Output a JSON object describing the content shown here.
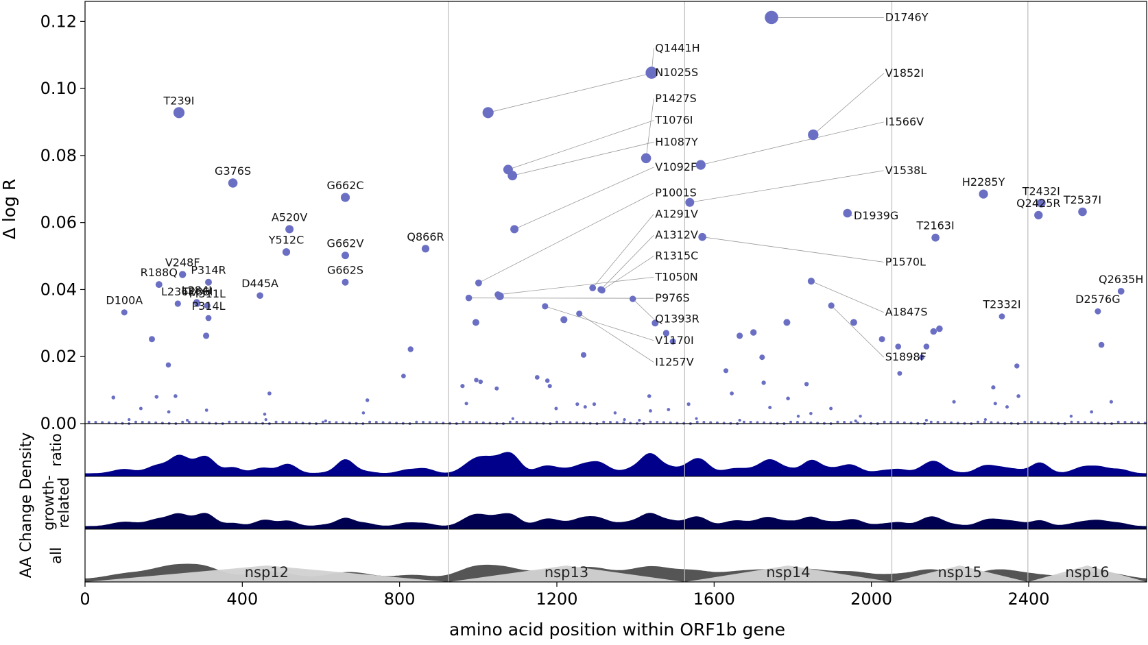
{
  "chart_data": {
    "type": "scatter",
    "xlabel": "amino acid position within ORF1b gene",
    "ylabel": "Δ log R",
    "density_axis_label": "AA Change Density",
    "xlim": [
      0,
      2700
    ],
    "ylim": [
      0,
      0.126
    ],
    "x_ticks": [
      0,
      400,
      800,
      1200,
      1600,
      2000,
      2400
    ],
    "y_ticks": [
      0.0,
      0.02,
      0.04,
      0.06,
      0.08,
      0.1,
      0.12
    ],
    "domain_boundaries": [
      924,
      1525,
      2052,
      2398
    ],
    "domains": [
      {
        "name": "nsp12",
        "start": 0,
        "end": 924
      },
      {
        "name": "nsp13",
        "start": 924,
        "end": 1525
      },
      {
        "name": "nsp14",
        "start": 1525,
        "end": 2052
      },
      {
        "name": "nsp15",
        "start": 2052,
        "end": 2398
      },
      {
        "name": "nsp16",
        "start": 2398,
        "end": 2700
      }
    ],
    "tracks": [
      {
        "label": "ratio",
        "color": "#00008b"
      },
      {
        "label": "growth-\nrelated",
        "color": "#000050"
      },
      {
        "label": "all",
        "color": "#555555"
      }
    ],
    "point_color": "#6a6fc4",
    "labeled_points": [
      {
        "name": "D1746Y",
        "x": 1746,
        "y": 0.1212
      },
      {
        "name": "N1025S",
        "x": 1025,
        "y": 0.0928
      },
      {
        "name": "Q1441H",
        "x": 1441,
        "y": 0.1047
      },
      {
        "name": "T239I",
        "x": 239,
        "y": 0.0928
      },
      {
        "name": "V1852I",
        "x": 1852,
        "y": 0.0862
      },
      {
        "name": "I1566V",
        "x": 1566,
        "y": 0.0772
      },
      {
        "name": "P1427S",
        "x": 1427,
        "y": 0.0792
      },
      {
        "name": "T1076I",
        "x": 1076,
        "y": 0.0758
      },
      {
        "name": "H1087Y",
        "x": 1087,
        "y": 0.074
      },
      {
        "name": "V1092F",
        "x": 1092,
        "y": 0.058
      },
      {
        "name": "G376S",
        "x": 376,
        "y": 0.0718
      },
      {
        "name": "G662C",
        "x": 662,
        "y": 0.0675
      },
      {
        "name": "V1538L",
        "x": 1538,
        "y": 0.066
      },
      {
        "name": "H2285Y",
        "x": 2285,
        "y": 0.0685
      },
      {
        "name": "T2432I",
        "x": 2432,
        "y": 0.0658
      },
      {
        "name": "Q2425R",
        "x": 2425,
        "y": 0.0622
      },
      {
        "name": "T2537I",
        "x": 2537,
        "y": 0.0632
      },
      {
        "name": "D1939G",
        "x": 1939,
        "y": 0.0628
      },
      {
        "name": "A520V",
        "x": 520,
        "y": 0.058
      },
      {
        "name": "T2163I",
        "x": 2163,
        "y": 0.0555
      },
      {
        "name": "P1001S",
        "x": 1001,
        "y": 0.042
      },
      {
        "name": "P1570L",
        "x": 1570,
        "y": 0.0557
      },
      {
        "name": "Y512C",
        "x": 512,
        "y": 0.0512
      },
      {
        "name": "Q866R",
        "x": 866,
        "y": 0.0522
      },
      {
        "name": "G662V",
        "x": 662,
        "y": 0.0502
      },
      {
        "name": "A1291V",
        "x": 1291,
        "y": 0.0405
      },
      {
        "name": "A1312V",
        "x": 1312,
        "y": 0.04
      },
      {
        "name": "R1315C",
        "x": 1315,
        "y": 0.0398
      },
      {
        "name": "T1050N",
        "x": 1050,
        "y": 0.0385
      },
      {
        "name": "P976S",
        "x": 976,
        "y": 0.0375
      },
      {
        "name": "Q1393R",
        "x": 1393,
        "y": 0.0372
      },
      {
        "name": "V1170I",
        "x": 1170,
        "y": 0.035
      },
      {
        "name": "I1257V",
        "x": 1257,
        "y": 0.0328
      },
      {
        "name": "G662S",
        "x": 662,
        "y": 0.0422
      },
      {
        "name": "V248F",
        "x": 248,
        "y": 0.0445
      },
      {
        "name": "R188Q",
        "x": 188,
        "y": 0.0415
      },
      {
        "name": "P314R",
        "x": 314,
        "y": 0.0422
      },
      {
        "name": "D445A",
        "x": 445,
        "y": 0.0382
      },
      {
        "name": "L284I",
        "x": 284,
        "y": 0.0362
      },
      {
        "name": "T286I",
        "x": 286,
        "y": 0.0358
      },
      {
        "name": "L236F",
        "x": 236,
        "y": 0.0358
      },
      {
        "name": "M311L",
        "x": 311,
        "y": 0.0352
      },
      {
        "name": "P314L",
        "x": 314,
        "y": 0.0315
      },
      {
        "name": "D100A",
        "x": 100,
        "y": 0.0332
      },
      {
        "name": "A1847S",
        "x": 1847,
        "y": 0.0425
      },
      {
        "name": "S1898F",
        "x": 1898,
        "y": 0.0352
      },
      {
        "name": "T2332I",
        "x": 2332,
        "y": 0.032
      },
      {
        "name": "Q2635H",
        "x": 2635,
        "y": 0.0395
      },
      {
        "name": "D2576G",
        "x": 2576,
        "y": 0.0335
      }
    ],
    "unlabeled_points": [
      [
        1450,
        0.03
      ],
      [
        1495,
        0.0245
      ],
      [
        1218,
        0.031
      ],
      [
        1268,
        0.0205
      ],
      [
        1478,
        0.027
      ],
      [
        994,
        0.0302
      ],
      [
        1055,
        0.038
      ],
      [
        1665,
        0.0262
      ],
      [
        1700,
        0.0272
      ],
      [
        1785,
        0.0302
      ],
      [
        1955,
        0.0302
      ],
      [
        2027,
        0.0252
      ],
      [
        2140,
        0.023
      ],
      [
        2158,
        0.0275
      ],
      [
        2173,
        0.0283
      ],
      [
        2068,
        0.023
      ],
      [
        2128,
        0.0198
      ],
      [
        1722,
        0.0198
      ],
      [
        1630,
        0.0158
      ],
      [
        2585,
        0.0235
      ],
      [
        2370,
        0.0172
      ],
      [
        170,
        0.0252
      ],
      [
        212,
        0.0175
      ],
      [
        308,
        0.0262
      ],
      [
        828,
        0.0222
      ],
      [
        810,
        0.0142
      ],
      [
        995,
        0.013
      ],
      [
        1006,
        0.0125
      ],
      [
        1150,
        0.0138
      ],
      [
        1176,
        0.0128
      ],
      [
        1182,
        0.0112
      ],
      [
        1726,
        0.0122
      ],
      [
        1835,
        0.0118
      ],
      [
        2072,
        0.015
      ],
      [
        2310,
        0.0108
      ],
      [
        2374,
        0.0082
      ],
      [
        1645,
        0.009
      ],
      [
        1435,
        0.0082
      ],
      [
        1788,
        0.0075
      ],
      [
        960,
        0.0112
      ],
      [
        1047,
        0.0105
      ],
      [
        1252,
        0.0058
      ],
      [
        1272,
        0.005
      ],
      [
        1295,
        0.0058
      ],
      [
        1198,
        0.0045
      ],
      [
        1348,
        0.0032
      ],
      [
        1438,
        0.0038
      ],
      [
        1535,
        0.0058
      ],
      [
        1555,
        0.0015
      ],
      [
        1742,
        0.0048
      ],
      [
        1814,
        0.0022
      ],
      [
        1897,
        0.0045
      ],
      [
        1972,
        0.0022
      ],
      [
        2210,
        0.0065
      ],
      [
        2315,
        0.006
      ],
      [
        2345,
        0.005
      ],
      [
        2560,
        0.0035
      ],
      [
        2610,
        0.0065
      ],
      [
        72,
        0.0078
      ],
      [
        182,
        0.008
      ],
      [
        230,
        0.0082
      ],
      [
        142,
        0.0045
      ],
      [
        213,
        0.0035
      ],
      [
        309,
        0.004
      ],
      [
        457,
        0.0028
      ],
      [
        469,
        0.009
      ],
      [
        718,
        0.007
      ],
      [
        708,
        0.0032
      ],
      [
        970,
        0.006
      ],
      [
        1484,
        0.0042
      ],
      [
        1846,
        0.003
      ],
      [
        2508,
        0.0022
      ],
      [
        112,
        0.0012
      ],
      [
        460,
        0.0012
      ],
      [
        1088,
        0.0015
      ],
      [
        1372,
        0.0012
      ],
      [
        1410,
        0.001
      ],
      [
        2290,
        0.0012
      ],
      [
        2140,
        0.001
      ],
      [
        1960,
        0.0008
      ],
      [
        1665,
        0.001
      ],
      [
        612,
        0.0008
      ],
      [
        260,
        0.001
      ]
    ]
  }
}
